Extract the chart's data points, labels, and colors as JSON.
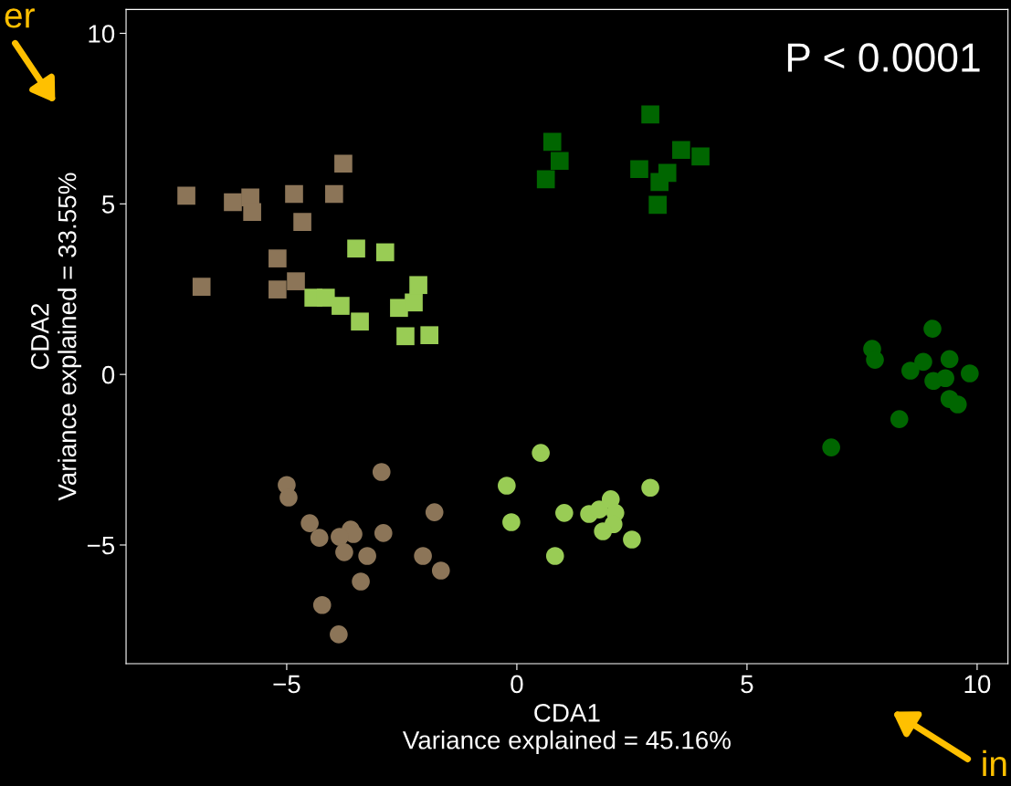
{
  "chart_data": {
    "type": "scatter",
    "xlabel": "CDA1\nVariance explained = 45.16%",
    "ylabel": "CDA2\nVariance explained = 33.55%",
    "annotations": [
      "P < 0.0001",
      "er",
      "in"
    ],
    "xlim": [
      -8.49,
      10.67
    ],
    "ylim": [
      -8.48,
      10.7
    ],
    "xticks": [
      {
        "value": -5,
        "label": "−5"
      },
      0,
      5,
      10
    ],
    "yticks": [
      {
        "value": -5,
        "label": "−5"
      },
      0,
      5,
      10
    ],
    "grid": false,
    "legend": false,
    "series": [
      {
        "marker": "square",
        "color": "#8c7558",
        "x": [
          -7.18,
          -6.17,
          -5.79,
          -5.75,
          -4.84,
          -4.66,
          -3.77,
          -3.97,
          -5.2,
          -5.2,
          -4.8,
          -6.85
        ],
        "values": [
          5.24,
          5.05,
          5.19,
          4.76,
          5.29,
          4.47,
          6.18,
          5.29,
          3.4,
          2.49,
          2.73,
          2.57
        ]
      },
      {
        "marker": "square",
        "color": "#99cc55",
        "x": [
          -3.49,
          -2.86,
          -4.42,
          -4.15,
          -3.83,
          -3.41,
          -2.56,
          -2.24,
          -2.14,
          -2.42,
          -1.9
        ],
        "values": [
          3.69,
          3.58,
          2.25,
          2.25,
          2.01,
          1.55,
          1.95,
          2.11,
          2.62,
          1.12,
          1.15
        ]
      },
      {
        "marker": "square",
        "color": "#006600",
        "x": [
          0.77,
          0.93,
          0.63,
          2.9,
          2.66,
          3.27,
          3.1,
          3.06,
          3.57,
          3.99
        ],
        "values": [
          6.82,
          6.26,
          5.72,
          7.62,
          6.02,
          5.91,
          5.64,
          4.97,
          6.58,
          6.39
        ]
      },
      {
        "marker": "circle",
        "color": "#006600",
        "x": [
          7.72,
          7.78,
          9.03,
          8.83,
          8.55,
          9.4,
          9.05,
          9.31,
          9.84,
          9.4,
          9.58,
          8.31,
          6.83
        ],
        "values": [
          0.75,
          0.43,
          1.34,
          0.37,
          0.11,
          0.45,
          -0.19,
          -0.11,
          0.03,
          -0.72,
          -0.88,
          -1.31,
          -2.14
        ]
      },
      {
        "marker": "circle",
        "color": "#99cc55",
        "x": [
          0.52,
          -0.22,
          -0.12,
          1.03,
          0.83,
          1.57,
          1.79,
          2.04,
          2.14,
          2.1,
          1.87,
          2.5,
          2.9
        ],
        "values": [
          -2.3,
          -3.26,
          -4.33,
          -4.06,
          -5.32,
          -4.09,
          -3.96,
          -3.66,
          -4.06,
          -4.39,
          -4.6,
          -4.84,
          -3.32
        ]
      },
      {
        "marker": "circle",
        "color": "#8c7558",
        "x": [
          -5.0,
          -4.96,
          -2.94,
          -4.5,
          -4.29,
          -3.61,
          -3.55,
          -3.85,
          -2.9,
          -1.79,
          -3.75,
          -3.25,
          -2.04,
          -1.65,
          -3.39,
          -4.23,
          -3.87
        ],
        "values": [
          -3.24,
          -3.61,
          -2.86,
          -4.36,
          -4.79,
          -4.55,
          -4.68,
          -4.76,
          -4.65,
          -4.04,
          -5.21,
          -5.32,
          -5.32,
          -5.75,
          -6.07,
          -6.76,
          -7.62
        ]
      }
    ]
  }
}
